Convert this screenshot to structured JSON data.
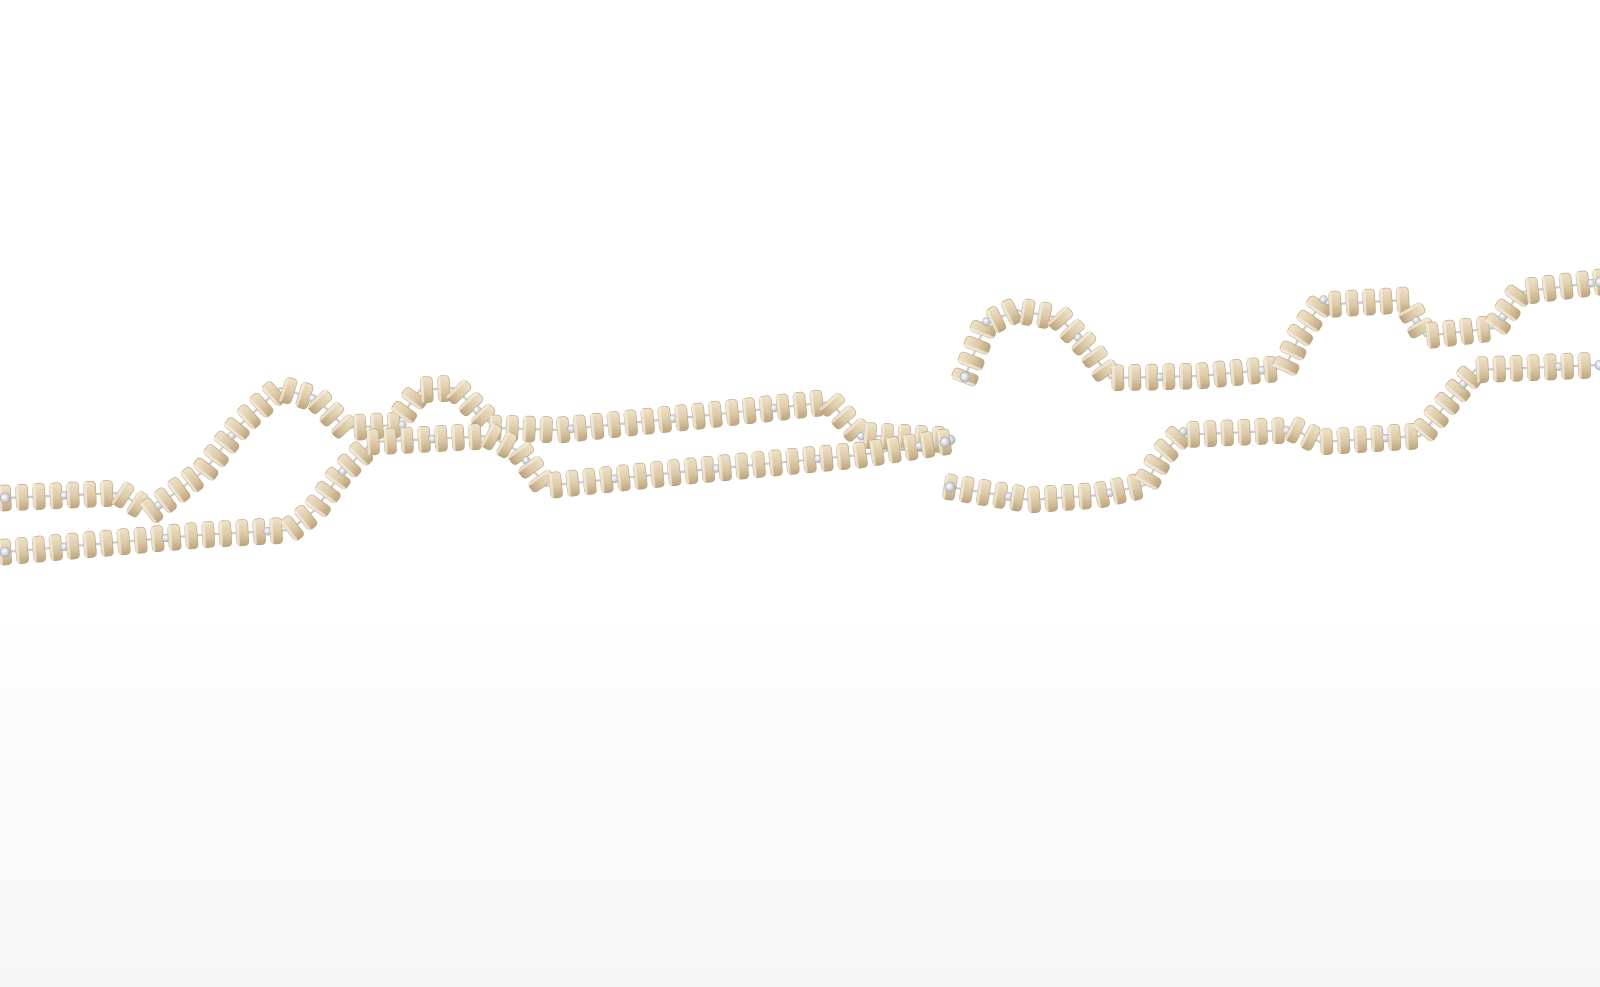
{
  "scene": {
    "description_free": true,
    "bead_color": "#dcc9a6",
    "bead_shadow": "#b79f78",
    "rod_color": "#c8ccd3",
    "cap_color": "#eef0f3",
    "floor_color": "#f3f3f3"
  }
}
